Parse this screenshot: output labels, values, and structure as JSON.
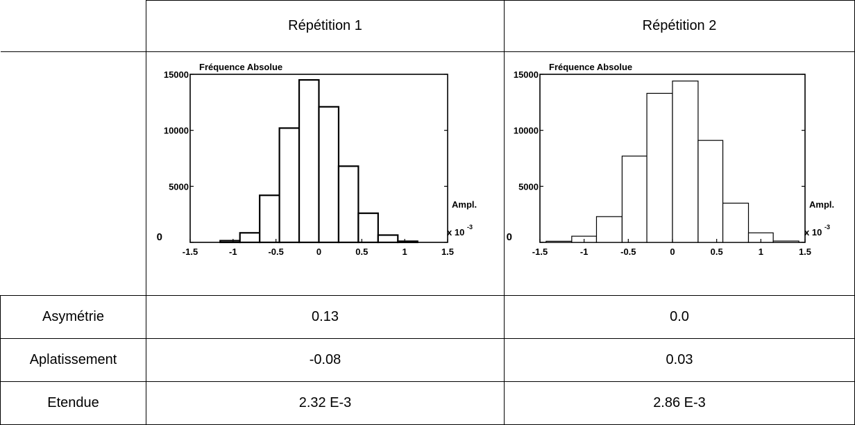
{
  "table": {
    "column_headers": [
      "Répétition 1",
      "Répétition 2"
    ],
    "rows": [
      {
        "label": "Asymétrie",
        "values": [
          "0.13",
          "0.0"
        ]
      },
      {
        "label": "Aplatissement",
        "values": [
          "-0.08",
          "0.03"
        ]
      },
      {
        "label": "Etendue",
        "values": [
          "2.32 E-3",
          "2.86 E-3"
        ]
      }
    ]
  },
  "chart_data": [
    {
      "type": "bar",
      "title": "Fréquence Absolue",
      "xlabel": "Ampl.",
      "xlabel_multiplier": "x 10",
      "xlabel_exponent": "-3",
      "xlim": [
        -1.5,
        1.5
      ],
      "ylim": [
        0,
        15000
      ],
      "xticks": [
        "-1.5",
        "-1",
        "-0.5",
        "0",
        "0.5",
        "1",
        "1.5"
      ],
      "yticks": [
        "0",
        "5000",
        "10000",
        "15000"
      ],
      "bins": [
        [
          -1.15,
          -0.92
        ],
        [
          -0.92,
          -0.69
        ],
        [
          -0.69,
          -0.46
        ],
        [
          -0.46,
          -0.23
        ],
        [
          -0.23,
          0.0
        ],
        [
          0.0,
          0.23
        ],
        [
          0.23,
          0.46
        ],
        [
          0.46,
          0.69
        ],
        [
          0.69,
          0.92
        ],
        [
          0.92,
          1.15
        ]
      ],
      "values": [
        150,
        850,
        4200,
        10200,
        14500,
        12100,
        6800,
        2600,
        650,
        100
      ],
      "bar_stroke_width": 2.2
    },
    {
      "type": "bar",
      "title": "Fréquence Absolue",
      "xlabel": "Ampl.",
      "xlabel_multiplier": "x 10",
      "xlabel_exponent": "-3",
      "xlim": [
        -1.5,
        1.5
      ],
      "ylim": [
        0,
        15000
      ],
      "xticks": [
        "-1.5",
        "-1",
        "-0.5",
        "0",
        "0.5",
        "1",
        "1.5"
      ],
      "yticks": [
        "0",
        "5000",
        "10000",
        "15000"
      ],
      "bins": [
        [
          -1.43,
          -1.14
        ],
        [
          -1.14,
          -0.86
        ],
        [
          -0.86,
          -0.57
        ],
        [
          -0.57,
          -0.29
        ],
        [
          -0.29,
          0.0
        ],
        [
          0.0,
          0.29
        ],
        [
          0.29,
          0.57
        ],
        [
          0.57,
          0.86
        ],
        [
          0.86,
          1.14
        ],
        [
          1.14,
          1.43
        ]
      ],
      "values": [
        100,
        550,
        2300,
        7700,
        13300,
        14400,
        9100,
        3500,
        850,
        120
      ],
      "bar_stroke_width": 1.2
    }
  ]
}
